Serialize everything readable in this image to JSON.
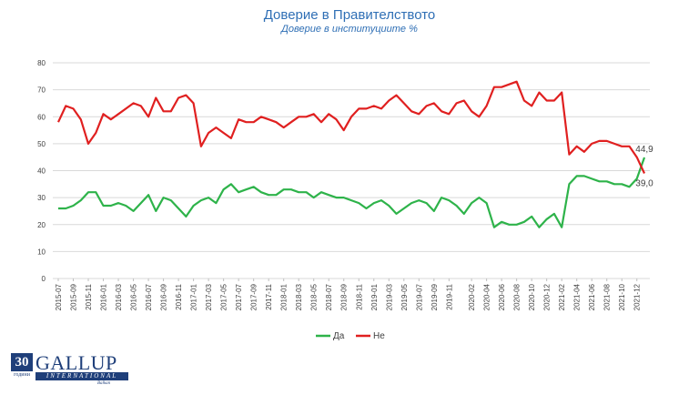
{
  "chart_data": {
    "type": "line",
    "title": "Доверие в Правителството",
    "subtitle": "Доверие в институциите %",
    "ylim": [
      0,
      80
    ],
    "yticks": [
      0,
      10,
      20,
      30,
      40,
      50,
      60,
      70,
      80
    ],
    "x": [
      "2015-07",
      "2015-08",
      "2015-09",
      "2015-10",
      "2015-11",
      "2015-12",
      "2016-01",
      "2016-02",
      "2016-03",
      "2016-04",
      "2016-05",
      "2016-06",
      "2016-07",
      "2016-08",
      "2016-09",
      "2016-10",
      "2016-11",
      "2016-12",
      "2017-01",
      "2017-02",
      "2017-03",
      "2017-04",
      "2017-05",
      "2017-06",
      "2017-07",
      "2017-08",
      "2017-09",
      "2017-10",
      "2017-11",
      "2017-12",
      "2018-01",
      "2018-02",
      "2018-03",
      "2018-04",
      "2018-05",
      "2018-06",
      "2018-07",
      "2018-08",
      "2018-09",
      "2018-10",
      "2018-11",
      "2018-12",
      "2019-01",
      "2019-02",
      "2019-03",
      "2019-04",
      "2019-05",
      "2019-06",
      "2019-07",
      "2019-08",
      "2019-09",
      "2019-10",
      "2019-11",
      "2019-12",
      "2020-01",
      "2020-02",
      "2020-03",
      "2020-04",
      "2020-05",
      "2020-06",
      "2020-07",
      "2020-08",
      "2020-09",
      "2020-10",
      "2020-11",
      "2020-12",
      "2021-01",
      "2021-02",
      "2021-03",
      "2021-04",
      "2021-05",
      "2021-06",
      "2021-07",
      "2021-08",
      "2021-09",
      "2021-10",
      "2021-11",
      "2021-12",
      "2022-01"
    ],
    "xtick_labels": [
      "2015-07",
      "2015-09",
      "2015-11",
      "2016-01",
      "2016-03",
      "2016-05",
      "2016-07",
      "2016-09",
      "2016-11",
      "2017-01",
      "2017-03",
      "2017-05",
      "2017-07",
      "2017-09",
      "2017-11",
      "2018-01",
      "2018-03",
      "2018-05",
      "2018-07",
      "2018-09",
      "2018-11",
      "2019-01",
      "2019-03",
      "2019-05",
      "2019-07",
      "2019-09",
      "2019-11",
      "2020-02",
      "2020-04",
      "2020-06",
      "2020-08",
      "2020-10",
      "2020-12",
      "2021-02",
      "2021-04",
      "2021-06",
      "2021-08",
      "2021-10",
      "2021-12"
    ],
    "series": [
      {
        "name": "Да",
        "color": "#2eb34a",
        "values": [
          26,
          26,
          27,
          29,
          32,
          32,
          27,
          27,
          28,
          27,
          25,
          28,
          31,
          25,
          30,
          29,
          26,
          23,
          27,
          29,
          30,
          28,
          33,
          35,
          32,
          33,
          34,
          32,
          31,
          31,
          33,
          33,
          32,
          32,
          30,
          32,
          31,
          30,
          30,
          29,
          28,
          26,
          28,
          29,
          27,
          24,
          26,
          28,
          29,
          28,
          25,
          30,
          29,
          27,
          24,
          28,
          30,
          28,
          19,
          21,
          20,
          20,
          21,
          23,
          19,
          22,
          24,
          19,
          35,
          38,
          38,
          37,
          36,
          36,
          35,
          35,
          34,
          37,
          44.9
        ]
      },
      {
        "name": "Не",
        "color": "#e02020",
        "values": [
          58,
          64,
          63,
          59,
          50,
          54,
          61,
          59,
          61,
          63,
          65,
          64,
          60,
          67,
          62,
          62,
          67,
          68,
          65,
          49,
          54,
          56,
          54,
          52,
          59,
          58,
          58,
          60,
          59,
          58,
          56,
          58,
          60,
          60,
          61,
          58,
          61,
          59,
          55,
          60,
          63,
          63,
          64,
          63,
          66,
          68,
          65,
          62,
          61,
          64,
          65,
          62,
          61,
          65,
          66,
          62,
          60,
          64,
          71,
          71,
          72,
          73,
          66,
          64,
          69,
          66,
          66,
          69,
          46,
          49,
          47,
          50,
          51,
          51,
          50,
          49,
          49,
          45,
          39.0
        ]
      }
    ],
    "end_labels": [
      "44,9",
      "39,0"
    ],
    "legend": "bottom",
    "grid": true
  },
  "logo": {
    "number": "30",
    "years": "години",
    "brand": "GALLUP",
    "bar": "INTERNATIONAL",
    "sub": "Balkan"
  }
}
